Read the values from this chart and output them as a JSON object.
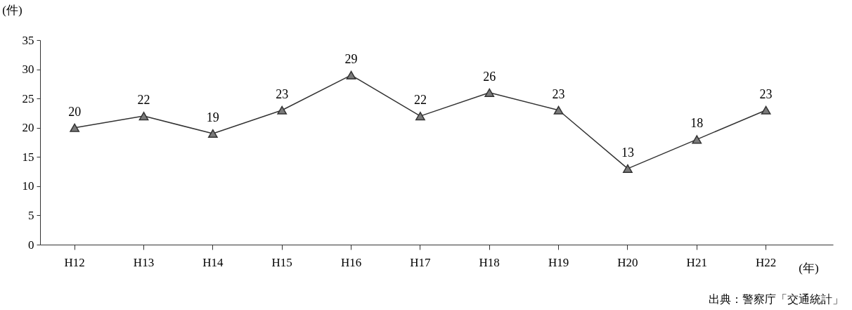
{
  "chart_data": {
    "type": "line",
    "xlabel": "(年)",
    "ylabel": "(件)",
    "categories": [
      "H12",
      "H13",
      "H14",
      "H15",
      "H16",
      "H17",
      "H18",
      "H19",
      "H20",
      "H21",
      "H22"
    ],
    "series": [
      {
        "color": "#333333",
        "values": [
          20,
          22,
          19,
          23,
          29,
          22,
          26,
          23,
          13,
          18,
          23
        ]
      }
    ],
    "ylim": [
      0,
      35
    ],
    "yticks": [
      0,
      5,
      10,
      15,
      20,
      25,
      30,
      35
    ],
    "marker": "triangle",
    "line_style": "solid",
    "data_labels": true,
    "annotations": [
      "出典：警察庁「交通統計」"
    ]
  }
}
